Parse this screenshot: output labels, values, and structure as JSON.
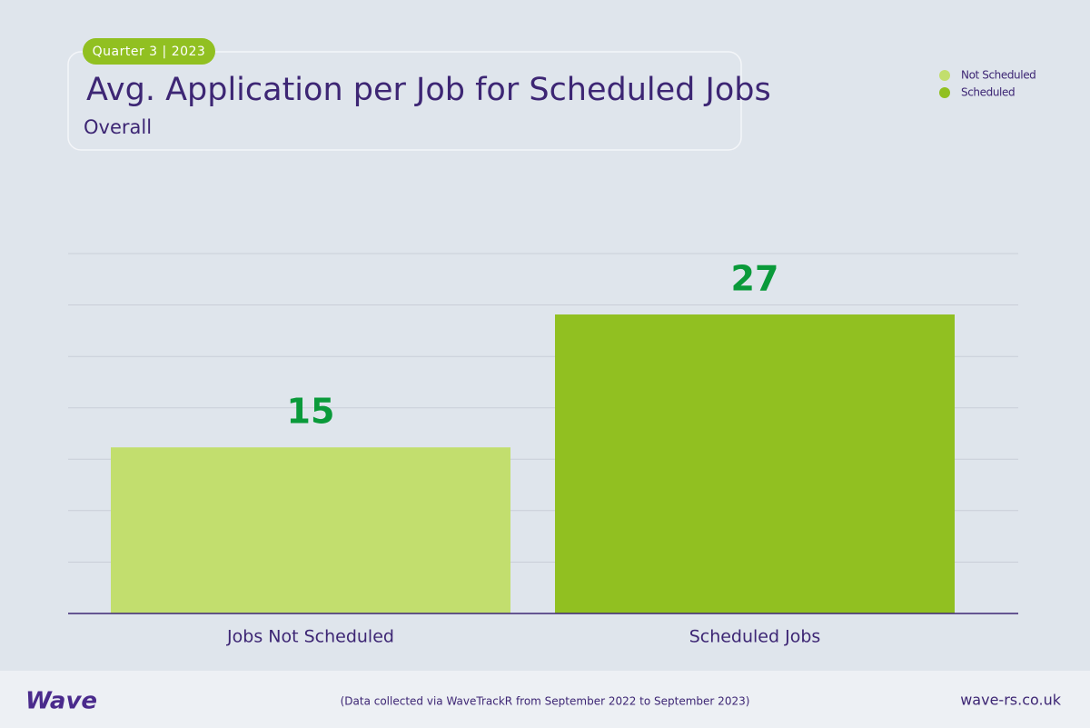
{
  "badge": "Quarter 3 | 2023",
  "chart_data": {
    "type": "bar",
    "title": "Avg. Application per Job for Scheduled Jobs",
    "subtitle": "Overall",
    "categories": [
      "Jobs Not Scheduled",
      "Scheduled Jobs"
    ],
    "series": [
      {
        "name": "Not Scheduled",
        "color": "#c2de6e",
        "values": [
          15,
          null
        ]
      },
      {
        "name": "Scheduled",
        "color": "#91c021",
        "values": [
          null,
          27
        ]
      }
    ],
    "ylim": [
      0,
      32.5
    ],
    "yticks": [
      0,
      4.64,
      9.29,
      13.93,
      18.57,
      23.21,
      27.86,
      32.5
    ],
    "grid": true,
    "legend": "top-right"
  },
  "footer": {
    "logo": "Wave",
    "note": "(Data collected via WaveTrackR from September 2022 to September 2023)",
    "url": "wave-rs.co.uk"
  }
}
